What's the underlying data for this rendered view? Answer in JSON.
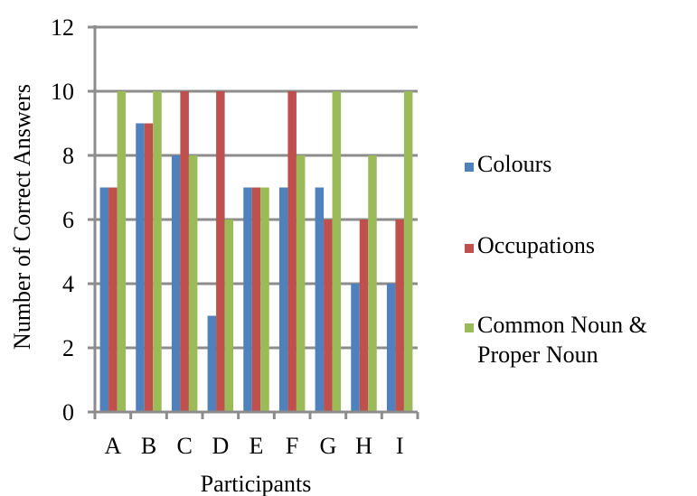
{
  "chart_data": {
    "type": "bar",
    "title": "",
    "xlabel": "Participants",
    "ylabel": "Number of Correct Answers",
    "categories": [
      "A",
      "B",
      "C",
      "D",
      "E",
      "F",
      "G",
      "H",
      "I"
    ],
    "ylim": [
      0,
      12
    ],
    "yticks": [
      "0",
      "2",
      "4",
      "6",
      "8",
      "10",
      "12"
    ],
    "grid": true,
    "legend_position": "right",
    "series": [
      {
        "name": "Colours",
        "color": "#4f81bd",
        "values": [
          7,
          9,
          8,
          3,
          7,
          7,
          7,
          4,
          4
        ]
      },
      {
        "name": "Occupations",
        "color": "#c0504d",
        "values": [
          7,
          9,
          10,
          10,
          7,
          10,
          6,
          6,
          6
        ]
      },
      {
        "name": "Common Noun & Proper Noun",
        "color": "#9bbb59",
        "values": [
          10,
          10,
          8,
          6,
          7,
          8,
          10,
          8,
          10
        ],
        "legend_lines": [
          "Common Noun &",
          "Proper Noun"
        ]
      }
    ]
  }
}
